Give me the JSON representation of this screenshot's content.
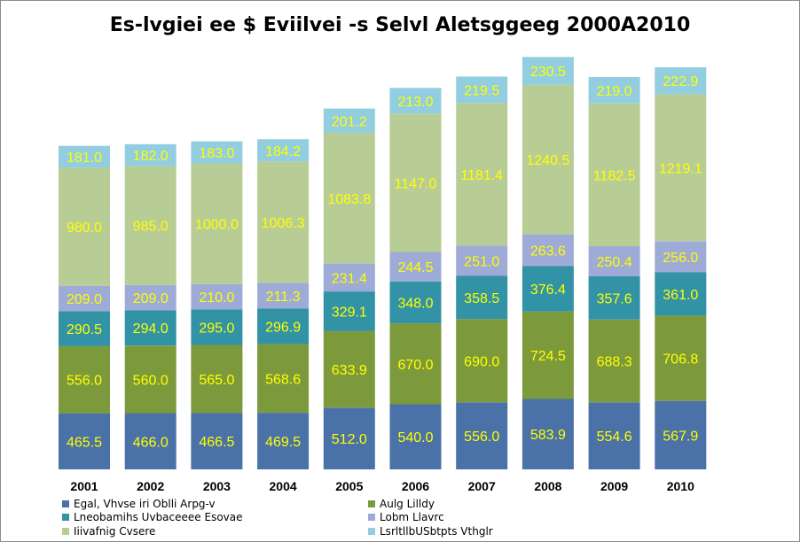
{
  "chart_data": {
    "type": "bar",
    "stacked": true,
    "title": "Es-lvgiei ee $ Eviilvei -s Selvl Aletsggeeg 2000A2010",
    "categories": [
      "2001",
      "2002",
      "2003",
      "2004",
      "2005",
      "2006",
      "2007",
      "2008",
      "2009",
      "2010"
    ],
    "series": [
      {
        "name": "Egal, Vhvse iri Oblli Arpg-v",
        "color": "#4a72a8",
        "labels": [
          "465.5",
          "466.0",
          "466.5",
          "469.5",
          "512.0",
          "540.0",
          "556.0",
          "583.9",
          "554.6",
          "567.9"
        ],
        "values": [
          465.5,
          466.0,
          466.5,
          469.5,
          512.0,
          540.0,
          556.0,
          583.9,
          554.6,
          567.9
        ]
      },
      {
        "name": "Aulg Lilldy",
        "color": "#7c9a3c",
        "labels": [
          "556.0",
          "560.0",
          "565.0",
          "568.6",
          "633.9",
          "670.0",
          "690.0",
          "724.5",
          "688.3",
          "706.8"
        ],
        "values": [
          556.0,
          560.0,
          565.0,
          568.6,
          633.9,
          670.0,
          690.0,
          724.5,
          688.3,
          706.8
        ]
      },
      {
        "name": "Lneobamihs Uvbaceeee Esovae",
        "color": "#3292a6",
        "labels": [
          "290.5",
          "294.0",
          "295.0",
          "296.9",
          "329.1",
          "348.0",
          "358.5",
          "376.4",
          "357.6",
          "361.0"
        ],
        "values": [
          290.5,
          294.0,
          295.0,
          296.9,
          329.1,
          348.0,
          358.5,
          376.4,
          357.6,
          361.0
        ]
      },
      {
        "name": "Lobm Llavrc",
        "color": "#9eabd6",
        "labels": [
          "209.0",
          "209.0",
          "210.0",
          "211.3",
          "231.4",
          "244.5",
          "251.0",
          "263.6",
          "250.4",
          "256.0"
        ],
        "values": [
          209.0,
          209.0,
          210.0,
          211.3,
          231.4,
          244.5,
          251.0,
          263.6,
          250.4,
          256.0
        ]
      },
      {
        "name": "Iiivafnig Cvsere",
        "color": "#b8cd96",
        "labels": [
          "980.0",
          "985.0",
          "1000.0",
          "1006.3",
          "1083.8",
          "1147.0",
          "1181.4",
          "1240.5",
          "1182.5",
          "1219.1"
        ],
        "values": [
          980.0,
          985.0,
          1000.0,
          1006.3,
          1083.8,
          1147.0,
          1181.4,
          1240.5,
          1182.5,
          1219.1
        ]
      },
      {
        "name": "LsrltllbUSbtpts Vthglr",
        "color": "#93cde0",
        "labels": [
          "181.0",
          "182.0",
          "183.0",
          "184.2",
          "201.2",
          "213.0",
          "219.5",
          "230.5",
          "219.0",
          "222.9"
        ],
        "values": [
          181.0,
          182.0,
          183.0,
          184.2,
          201.2,
          213.0,
          219.5,
          230.5,
          219.0,
          222.9
        ]
      }
    ],
    "data_label_color": "#ffff00",
    "grid": false,
    "legend_position": "bottom"
  }
}
